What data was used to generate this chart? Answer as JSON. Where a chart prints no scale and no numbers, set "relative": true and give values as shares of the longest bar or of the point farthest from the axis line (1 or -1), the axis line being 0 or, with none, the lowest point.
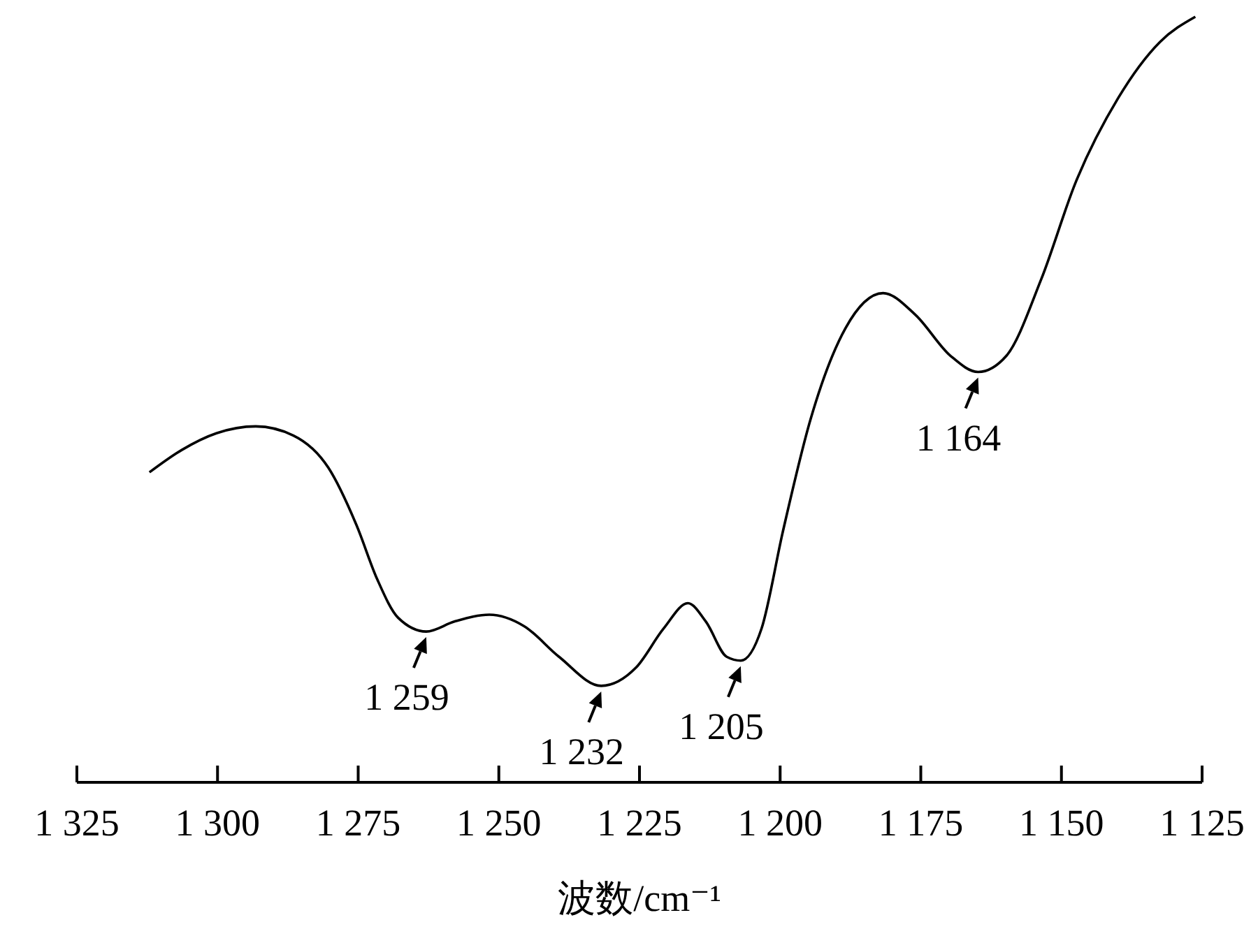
{
  "chart_data": {
    "type": "line",
    "relative": true,
    "xlabel": "波数/cm⁻¹",
    "tick_labels": "x",
    "color": "#000000",
    "marker": "none",
    "line_style": "solid",
    "xlim": [
      1325,
      1125
    ],
    "xticks": [
      {
        "value": 1325,
        "label": "1 325"
      },
      {
        "value": 1300,
        "label": "1 300"
      },
      {
        "value": 1275,
        "label": "1 275"
      },
      {
        "value": 1250,
        "label": "1 250"
      },
      {
        "value": 1225,
        "label": "1 225"
      },
      {
        "value": 1200,
        "label": "1 200"
      },
      {
        "value": 1175,
        "label": "1 175"
      },
      {
        "value": 1150,
        "label": "1 150"
      },
      {
        "value": 1125,
        "label": "1 125"
      }
    ],
    "x": [
      1312.1,
      1306.4,
      1300.2,
      1293.2,
      1286.5,
      1280.3,
      1275.3,
      1271.6,
      1267.9,
      1262.9,
      1257.9,
      1251.7,
      1245.5,
      1239.3,
      1231.8,
      1225.6,
      1220.7,
      1216.4,
      1213.2,
      1209.5,
      1207.0,
      1203.3,
      1199.5,
      1194.6,
      1188.4,
      1181.7,
      1176.0,
      1169.7,
      1164.8,
      1159.8,
      1153.6,
      1147.4,
      1139.9,
      1132.5,
      1126.2
    ],
    "values": [
      0.405,
      0.434,
      0.456,
      0.465,
      0.453,
      0.411,
      0.336,
      0.265,
      0.215,
      0.197,
      0.21,
      0.219,
      0.204,
      0.164,
      0.126,
      0.15,
      0.201,
      0.234,
      0.21,
      0.164,
      0.159,
      0.201,
      0.328,
      0.474,
      0.593,
      0.639,
      0.611,
      0.557,
      0.536,
      0.557,
      0.657,
      0.785,
      0.894,
      0.967,
      1
    ],
    "annotations": [
      {
        "text": "1 259",
        "x": 1262.9,
        "y": 0.197
      },
      {
        "text": "1 232",
        "x": 1231.8,
        "y": 0.126
      },
      {
        "text": "1 205",
        "x": 1207.0,
        "y": 0.159
      },
      {
        "text": "1 164",
        "x": 1164.8,
        "y": 0.536
      }
    ]
  }
}
